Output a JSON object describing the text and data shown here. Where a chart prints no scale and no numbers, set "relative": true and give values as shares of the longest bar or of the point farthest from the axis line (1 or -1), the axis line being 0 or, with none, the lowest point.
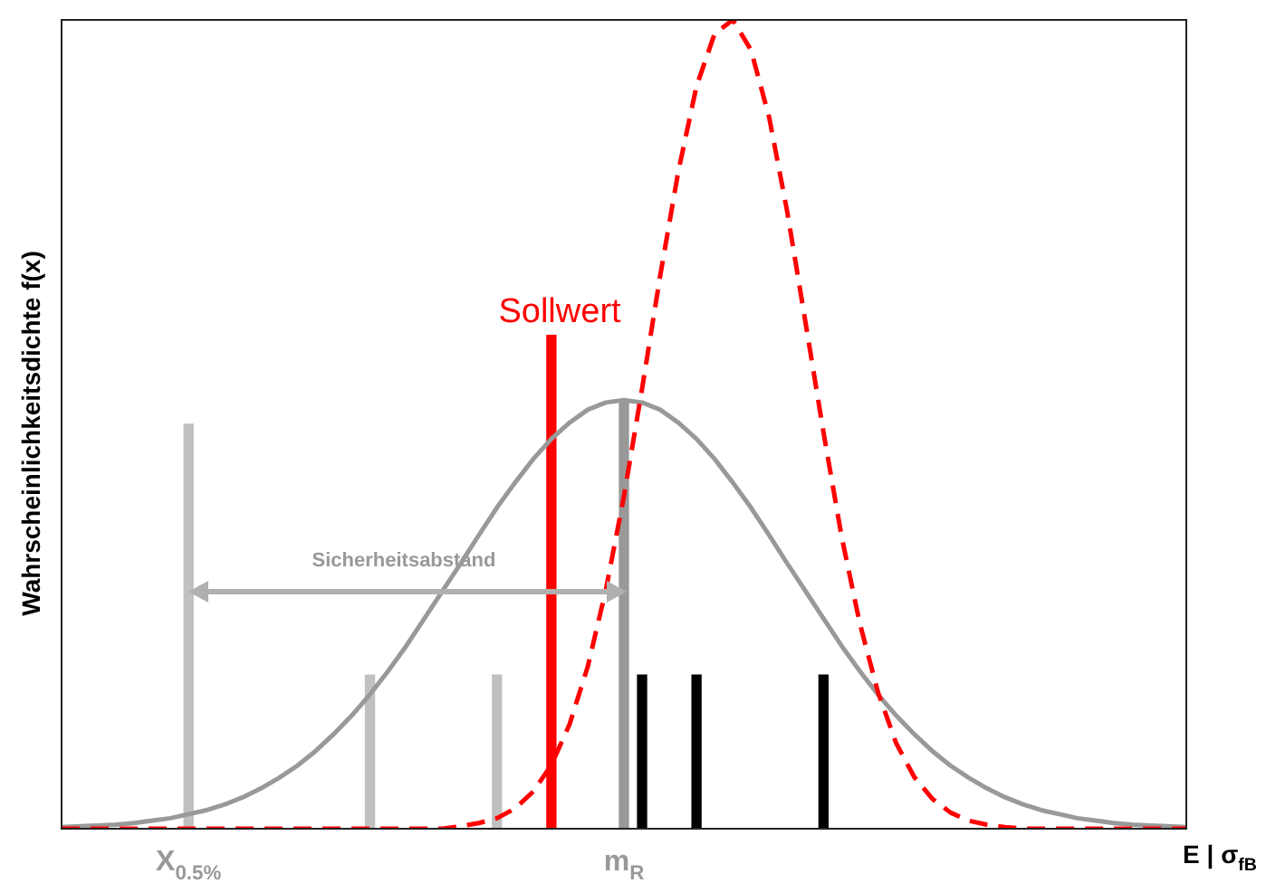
{
  "chart_data": {
    "type": "line",
    "relative": true,
    "ylabel": "Wahrscheinlichkeitsdichte f(x)",
    "xlabel": "E | σ$_{fB}$",
    "legend": false,
    "annotations": [
      "Sollwert",
      "Sicherheitsabstand"
    ],
    "categories": [
      null,
      null,
      null,
      null,
      null,
      null,
      null,
      "X$_{0.5%}$",
      null,
      null,
      null,
      null,
      null,
      null,
      null,
      null,
      null,
      null,
      null,
      null,
      null,
      null,
      null,
      null,
      null,
      null,
      null,
      null,
      null,
      null,
      null,
      "m$_{R}$",
      null,
      null,
      null,
      null,
      null,
      null,
      null,
      null,
      null,
      null,
      null,
      null,
      null,
      null,
      null,
      null,
      null,
      null,
      null,
      null,
      null,
      null,
      null,
      null,
      null,
      null,
      null,
      null,
      null,
      null,
      null
    ],
    "series": [
      {
        "color": "#999999",
        "line_style": "solid",
        "values": [
          0.002,
          0.003,
          0.004,
          0.005,
          0.007,
          0.01,
          0.013,
          0.018,
          0.023,
          0.03,
          0.039,
          0.05,
          0.063,
          0.078,
          0.096,
          0.117,
          0.14,
          0.166,
          0.195,
          0.226,
          0.26,
          0.294,
          0.328,
          0.363,
          0.397,
          0.428,
          0.457,
          0.482,
          0.502,
          0.518,
          0.527,
          0.53,
          0.527,
          0.518,
          0.502,
          0.482,
          0.457,
          0.428,
          0.397,
          0.363,
          0.328,
          0.294,
          0.26,
          0.226,
          0.195,
          0.166,
          0.14,
          0.117,
          0.096,
          0.078,
          0.063,
          0.05,
          0.039,
          0.03,
          0.023,
          0.018,
          0.013,
          0.01,
          0.007,
          0.005,
          0.004,
          0.003,
          0.002
        ]
      },
      {
        "color": "#ff0000",
        "line_style": "dashed",
        "values": [
          0,
          0,
          0,
          0,
          0,
          0,
          0,
          0,
          0,
          0,
          0,
          0,
          0,
          0,
          0,
          0,
          0,
          0,
          0,
          0,
          0,
          0,
          0.003,
          0.007,
          0.013,
          0.025,
          0.046,
          0.079,
          0.129,
          0.2,
          0.295,
          0.411,
          0.544,
          0.684,
          0.813,
          0.918,
          0.983,
          1,
          0.963,
          0.88,
          0.763,
          0.627,
          0.49,
          0.361,
          0.254,
          0.169,
          0.106,
          0.064,
          0.037,
          0.02,
          0.01,
          0.005,
          0.002,
          0,
          0,
          0,
          0,
          0,
          0,
          0,
          0,
          0,
          0
        ]
      },
      {
        "type": "bar",
        "colors": [
          null,
          null,
          null,
          null,
          null,
          null,
          null,
          "#c0c0c0",
          null,
          null,
          null,
          null,
          null,
          null,
          null,
          null,
          null,
          "#c0c0c0",
          null,
          null,
          null,
          null,
          null,
          null,
          "#c0c0c0",
          null,
          null,
          "#ff0000",
          null,
          null,
          null,
          "#999999",
          "#000000",
          null,
          null,
          "#000000",
          null,
          null,
          null,
          null,
          null,
          null,
          "#000000",
          null,
          null,
          null,
          null,
          null,
          null,
          null,
          null,
          null,
          null,
          null,
          null,
          null,
          null,
          null,
          null,
          null,
          null,
          null,
          null
        ],
        "values": [
          null,
          null,
          null,
          null,
          null,
          null,
          null,
          0.5,
          null,
          null,
          null,
          null,
          null,
          null,
          null,
          null,
          null,
          0.19,
          null,
          null,
          null,
          null,
          null,
          null,
          0.19,
          null,
          null,
          0.61,
          null,
          null,
          null,
          0.53,
          0.19,
          null,
          null,
          0.19,
          null,
          null,
          null,
          null,
          null,
          null,
          0.19,
          null,
          null,
          null,
          null,
          null,
          null,
          null,
          null,
          null,
          null,
          null,
          null,
          null,
          null,
          null,
          null,
          null,
          null,
          null,
          null
        ]
      }
    ]
  }
}
